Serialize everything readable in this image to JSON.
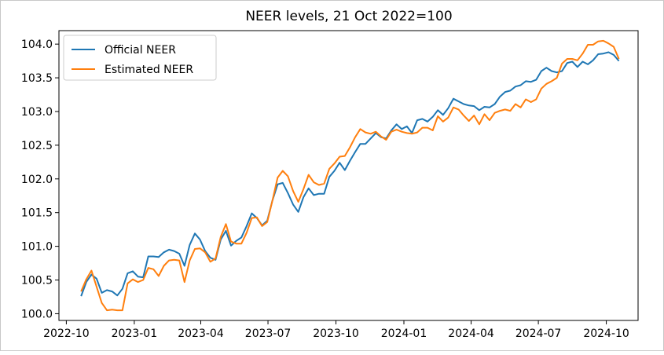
{
  "chart_data": {
    "type": "line",
    "title": "NEER levels, 21 Oct 2022=100",
    "xlabel": "",
    "ylabel": "",
    "xlim": [
      "2022-09-21",
      "2024-11-13"
    ],
    "ylim": [
      99.9,
      104.2
    ],
    "grid": false,
    "legend_position": "upper left",
    "x_ticks": [
      "2022-10",
      "2023-01",
      "2023-04",
      "2023-07",
      "2023-10",
      "2024-01",
      "2024-04",
      "2024-07",
      "2024-10"
    ],
    "y_ticks": [
      "100.0",
      "100.5",
      "101.0",
      "101.5",
      "102.0",
      "102.5",
      "103.0",
      "103.5",
      "104.0"
    ],
    "series": [
      {
        "name": "Official NEER",
        "color": "#1f77b4",
        "points": [
          [
            "2022-10-21",
            100.26
          ],
          [
            "2022-10-28",
            100.47
          ],
          [
            "2022-11-04",
            100.58
          ],
          [
            "2022-11-11",
            100.52
          ],
          [
            "2022-11-18",
            100.31
          ],
          [
            "2022-11-25",
            100.35
          ],
          [
            "2022-12-02",
            100.33
          ],
          [
            "2022-12-09",
            100.27
          ],
          [
            "2022-12-16",
            100.37
          ],
          [
            "2022-12-23",
            100.6
          ],
          [
            "2022-12-30",
            100.63
          ],
          [
            "2023-01-06",
            100.55
          ],
          [
            "2023-01-13",
            100.54
          ],
          [
            "2023-01-20",
            100.85
          ],
          [
            "2023-01-27",
            100.85
          ],
          [
            "2023-02-03",
            100.84
          ],
          [
            "2023-02-10",
            100.91
          ],
          [
            "2023-02-17",
            100.95
          ],
          [
            "2023-02-24",
            100.93
          ],
          [
            "2023-03-03",
            100.89
          ],
          [
            "2023-03-10",
            100.71
          ],
          [
            "2023-03-17",
            101.02
          ],
          [
            "2023-03-24",
            101.19
          ],
          [
            "2023-03-31",
            101.1
          ],
          [
            "2023-04-07",
            100.93
          ],
          [
            "2023-04-14",
            100.83
          ],
          [
            "2023-04-21",
            100.8
          ],
          [
            "2023-04-28",
            101.1
          ],
          [
            "2023-05-05",
            101.23
          ],
          [
            "2023-05-12",
            101.01
          ],
          [
            "2023-05-19",
            101.08
          ],
          [
            "2023-05-26",
            101.13
          ],
          [
            "2023-06-02",
            101.3
          ],
          [
            "2023-06-09",
            101.49
          ],
          [
            "2023-06-16",
            101.42
          ],
          [
            "2023-06-23",
            101.31
          ],
          [
            "2023-06-30",
            101.38
          ],
          [
            "2023-07-07",
            101.68
          ],
          [
            "2023-07-14",
            101.92
          ],
          [
            "2023-07-21",
            101.94
          ],
          [
            "2023-07-28",
            101.79
          ],
          [
            "2023-08-04",
            101.62
          ],
          [
            "2023-08-11",
            101.51
          ],
          [
            "2023-08-18",
            101.73
          ],
          [
            "2023-08-25",
            101.86
          ],
          [
            "2023-09-01",
            101.76
          ],
          [
            "2023-09-08",
            101.78
          ],
          [
            "2023-09-15",
            101.78
          ],
          [
            "2023-09-22",
            102.03
          ],
          [
            "2023-09-29",
            102.12
          ],
          [
            "2023-10-06",
            102.24
          ],
          [
            "2023-10-13",
            102.13
          ],
          [
            "2023-10-20",
            102.27
          ],
          [
            "2023-10-27",
            102.4
          ],
          [
            "2023-11-03",
            102.52
          ],
          [
            "2023-11-10",
            102.52
          ],
          [
            "2023-11-17",
            102.6
          ],
          [
            "2023-11-24",
            102.68
          ],
          [
            "2023-12-01",
            102.62
          ],
          [
            "2023-12-08",
            102.6
          ],
          [
            "2023-12-15",
            102.72
          ],
          [
            "2023-12-22",
            102.81
          ],
          [
            "2023-12-29",
            102.74
          ],
          [
            "2024-01-05",
            102.78
          ],
          [
            "2024-01-12",
            102.68
          ],
          [
            "2024-01-19",
            102.87
          ],
          [
            "2024-01-26",
            102.89
          ],
          [
            "2024-02-02",
            102.85
          ],
          [
            "2024-02-09",
            102.92
          ],
          [
            "2024-02-16",
            103.02
          ],
          [
            "2024-02-23",
            102.95
          ],
          [
            "2024-03-01",
            103.05
          ],
          [
            "2024-03-08",
            103.19
          ],
          [
            "2024-03-15",
            103.15
          ],
          [
            "2024-03-22",
            103.11
          ],
          [
            "2024-03-29",
            103.09
          ],
          [
            "2024-04-05",
            103.08
          ],
          [
            "2024-04-12",
            103.02
          ],
          [
            "2024-04-19",
            103.07
          ],
          [
            "2024-04-26",
            103.06
          ],
          [
            "2024-05-03",
            103.11
          ],
          [
            "2024-05-10",
            103.22
          ],
          [
            "2024-05-17",
            103.29
          ],
          [
            "2024-05-24",
            103.31
          ],
          [
            "2024-05-31",
            103.37
          ],
          [
            "2024-06-07",
            103.39
          ],
          [
            "2024-06-14",
            103.45
          ],
          [
            "2024-06-21",
            103.44
          ],
          [
            "2024-06-28",
            103.47
          ],
          [
            "2024-07-05",
            103.6
          ],
          [
            "2024-07-12",
            103.65
          ],
          [
            "2024-07-19",
            103.6
          ],
          [
            "2024-07-26",
            103.58
          ],
          [
            "2024-08-02",
            103.6
          ],
          [
            "2024-08-09",
            103.72
          ],
          [
            "2024-08-16",
            103.74
          ],
          [
            "2024-08-23",
            103.66
          ],
          [
            "2024-08-30",
            103.74
          ],
          [
            "2024-09-06",
            103.7
          ],
          [
            "2024-09-13",
            103.76
          ],
          [
            "2024-09-20",
            103.85
          ],
          [
            "2024-09-27",
            103.86
          ],
          [
            "2024-10-04",
            103.88
          ],
          [
            "2024-10-11",
            103.84
          ],
          [
            "2024-10-18",
            103.75
          ]
        ]
      },
      {
        "name": "Estimated NEER",
        "color": "#ff7f0e",
        "points": [
          [
            "2022-10-21",
            100.33
          ],
          [
            "2022-10-28",
            100.51
          ],
          [
            "2022-11-04",
            100.64
          ],
          [
            "2022-11-11",
            100.4
          ],
          [
            "2022-11-18",
            100.16
          ],
          [
            "2022-11-25",
            100.05
          ],
          [
            "2022-12-02",
            100.06
          ],
          [
            "2022-12-09",
            100.05
          ],
          [
            "2022-12-16",
            100.05
          ],
          [
            "2022-12-23",
            100.45
          ],
          [
            "2022-12-30",
            100.51
          ],
          [
            "2023-01-06",
            100.47
          ],
          [
            "2023-01-13",
            100.5
          ],
          [
            "2023-01-20",
            100.68
          ],
          [
            "2023-01-27",
            100.66
          ],
          [
            "2023-02-03",
            100.56
          ],
          [
            "2023-02-10",
            100.71
          ],
          [
            "2023-02-17",
            100.79
          ],
          [
            "2023-02-24",
            100.8
          ],
          [
            "2023-03-03",
            100.79
          ],
          [
            "2023-03-10",
            100.47
          ],
          [
            "2023-03-17",
            100.79
          ],
          [
            "2023-03-24",
            100.96
          ],
          [
            "2023-03-31",
            100.97
          ],
          [
            "2023-04-07",
            100.91
          ],
          [
            "2023-04-14",
            100.77
          ],
          [
            "2023-04-21",
            100.82
          ],
          [
            "2023-04-28",
            101.14
          ],
          [
            "2023-05-05",
            101.33
          ],
          [
            "2023-05-12",
            101.07
          ],
          [
            "2023-05-19",
            101.04
          ],
          [
            "2023-05-26",
            101.04
          ],
          [
            "2023-06-02",
            101.2
          ],
          [
            "2023-06-09",
            101.42
          ],
          [
            "2023-06-16",
            101.43
          ],
          [
            "2023-06-23",
            101.3
          ],
          [
            "2023-06-30",
            101.36
          ],
          [
            "2023-07-07",
            101.68
          ],
          [
            "2023-07-14",
            102.02
          ],
          [
            "2023-07-21",
            102.12
          ],
          [
            "2023-07-28",
            102.04
          ],
          [
            "2023-08-04",
            101.82
          ],
          [
            "2023-08-11",
            101.66
          ],
          [
            "2023-08-18",
            101.85
          ],
          [
            "2023-08-25",
            102.06
          ],
          [
            "2023-09-01",
            101.95
          ],
          [
            "2023-09-08",
            101.91
          ],
          [
            "2023-09-15",
            101.93
          ],
          [
            "2023-09-22",
            102.15
          ],
          [
            "2023-09-29",
            102.23
          ],
          [
            "2023-10-06",
            102.33
          ],
          [
            "2023-10-13",
            102.34
          ],
          [
            "2023-10-20",
            102.47
          ],
          [
            "2023-10-27",
            102.62
          ],
          [
            "2023-11-03",
            102.74
          ],
          [
            "2023-11-10",
            102.69
          ],
          [
            "2023-11-17",
            102.67
          ],
          [
            "2023-11-24",
            102.7
          ],
          [
            "2023-12-01",
            102.63
          ],
          [
            "2023-12-08",
            102.58
          ],
          [
            "2023-12-15",
            102.7
          ],
          [
            "2023-12-22",
            102.73
          ],
          [
            "2023-12-29",
            102.7
          ],
          [
            "2024-01-05",
            102.68
          ],
          [
            "2024-01-12",
            102.67
          ],
          [
            "2024-01-19",
            102.69
          ],
          [
            "2024-01-26",
            102.76
          ],
          [
            "2024-02-02",
            102.76
          ],
          [
            "2024-02-09",
            102.72
          ],
          [
            "2024-02-16",
            102.93
          ],
          [
            "2024-02-23",
            102.85
          ],
          [
            "2024-03-01",
            102.91
          ],
          [
            "2024-03-08",
            103.06
          ],
          [
            "2024-03-15",
            103.03
          ],
          [
            "2024-03-22",
            102.94
          ],
          [
            "2024-03-29",
            102.86
          ],
          [
            "2024-04-05",
            102.94
          ],
          [
            "2024-04-12",
            102.81
          ],
          [
            "2024-04-19",
            102.96
          ],
          [
            "2024-04-26",
            102.87
          ],
          [
            "2024-05-03",
            102.98
          ],
          [
            "2024-05-10",
            103.01
          ],
          [
            "2024-05-17",
            103.03
          ],
          [
            "2024-05-24",
            103.01
          ],
          [
            "2024-05-31",
            103.11
          ],
          [
            "2024-06-07",
            103.06
          ],
          [
            "2024-06-14",
            103.18
          ],
          [
            "2024-06-21",
            103.14
          ],
          [
            "2024-06-28",
            103.18
          ],
          [
            "2024-07-05",
            103.34
          ],
          [
            "2024-07-12",
            103.41
          ],
          [
            "2024-07-19",
            103.45
          ],
          [
            "2024-07-26",
            103.5
          ],
          [
            "2024-08-02",
            103.71
          ],
          [
            "2024-08-09",
            103.78
          ],
          [
            "2024-08-16",
            103.78
          ],
          [
            "2024-08-23",
            103.76
          ],
          [
            "2024-08-30",
            103.86
          ],
          [
            "2024-09-06",
            103.99
          ],
          [
            "2024-09-13",
            103.99
          ],
          [
            "2024-09-20",
            104.04
          ],
          [
            "2024-09-27",
            104.05
          ],
          [
            "2024-10-04",
            104.01
          ],
          [
            "2024-10-11",
            103.96
          ],
          [
            "2024-10-18",
            103.78
          ]
        ]
      }
    ]
  }
}
